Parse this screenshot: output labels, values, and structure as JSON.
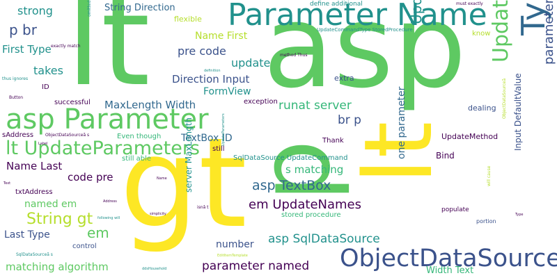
{
  "palette": {
    "green": "#5ec962",
    "yellow": "#fde725",
    "teal": "#21918c",
    "blue": "#3b528b",
    "purple": "#440154",
    "lime": "#b5de2b",
    "sea": "#35b779",
    "steel": "#31688e"
  },
  "words": [
    {
      "text": "lt"
    },
    {
      "text": "asp"
    },
    {
      "text": "gt"
    },
    {
      "text": "p"
    },
    {
      "text": "lt"
    },
    {
      "text": "Parameter Name"
    },
    {
      "text": "asp Parameter"
    },
    {
      "text": "Type String"
    },
    {
      "text": "lt UpdateParameters"
    },
    {
      "text": "ObjectDataSource"
    },
    {
      "text": "UpdateParameters gt"
    },
    {
      "text": "UpdateNames em"
    },
    {
      "text": "parameters defined"
    },
    {
      "text": "String gt"
    },
    {
      "text": "asp TextBox"
    },
    {
      "text": "em UpdateNames"
    },
    {
      "text": "asp SqlDataSource"
    },
    {
      "text": "parameter named"
    },
    {
      "text": "p br"
    },
    {
      "text": "strong"
    },
    {
      "text": "String Direction"
    },
    {
      "text": "First Type"
    },
    {
      "text": "pre code"
    },
    {
      "text": "Name First"
    },
    {
      "text": "takes"
    },
    {
      "text": "update"
    },
    {
      "text": "Direction Input"
    },
    {
      "text": "FormView"
    },
    {
      "text": "MaxLength Width"
    },
    {
      "text": "runat server"
    },
    {
      "text": "br p"
    },
    {
      "text": "TextBox ID"
    },
    {
      "text": "Name Last"
    },
    {
      "text": "code pre"
    },
    {
      "text": "s matching"
    },
    {
      "text": "named em"
    },
    {
      "text": "em"
    },
    {
      "text": "Last Type"
    },
    {
      "text": "matching algorithm"
    },
    {
      "text": "number"
    },
    {
      "text": "Width Text"
    },
    {
      "text": "one parameter"
    },
    {
      "text": "Input DefaultValue"
    },
    {
      "text": "server MaxLength"
    },
    {
      "text": "flexible"
    },
    {
      "text": "define additional"
    },
    {
      "text": "UpdateCommandType StoredProcedure"
    },
    {
      "text": "exactly match"
    },
    {
      "text": "must exactly"
    },
    {
      "text": "know"
    },
    {
      "text": "dealing"
    },
    {
      "text": "extra"
    },
    {
      "text": "exception"
    },
    {
      "text": "successful"
    },
    {
      "text": "Button"
    },
    {
      "text": "ID"
    },
    {
      "text": "thus ignores"
    },
    {
      "text": "sAddress"
    },
    {
      "text": "ObjectDataSourceã s"
    },
    {
      "text": "Even though"
    },
    {
      "text": "still able"
    },
    {
      "text": "SqlDataSource UpdateCommand"
    },
    {
      "text": "Thank"
    },
    {
      "text": "still"
    },
    {
      "text": "Bind"
    },
    {
      "text": "UpdateMethod"
    },
    {
      "text": "txtAddress"
    },
    {
      "text": "control"
    },
    {
      "text": "stored procedure"
    },
    {
      "text": "populate"
    },
    {
      "text": "portion"
    },
    {
      "text": "method Thus"
    },
    {
      "text": "definition"
    },
    {
      "text": "SqlDataSourceã s"
    },
    {
      "text": "following will"
    },
    {
      "text": "simplicity"
    },
    {
      "text": "isnâ t"
    },
    {
      "text": "EditItemTemplate"
    },
    {
      "text": "ddsHousehold"
    },
    {
      "text": "Text"
    },
    {
      "text": "Label"
    },
    {
      "text": "will cause"
    },
    {
      "text": "ObjectDataSourceã"
    },
    {
      "text": "omitted"
    },
    {
      "text": "UpdateParameters"
    },
    {
      "text": "Name"
    },
    {
      "text": "Type"
    },
    {
      "text": "Address"
    }
  ]
}
